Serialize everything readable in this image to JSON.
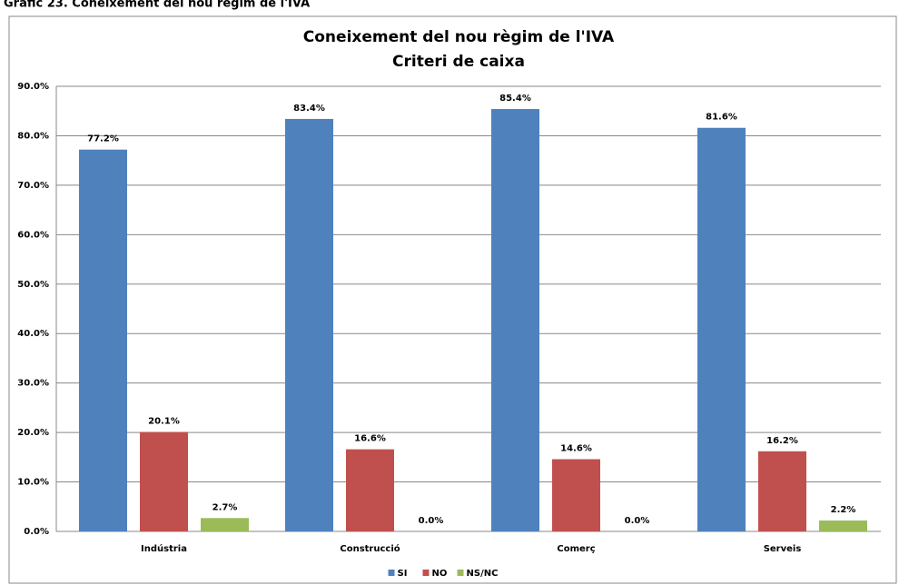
{
  "header": "Gràfic 23. Coneixement del nou règim de l'IVA",
  "chart_data": {
    "type": "bar",
    "title": "Coneixement del nou règim de l'IVA",
    "subtitle": "Criteri de caixa",
    "categories": [
      "Indústria",
      "Construcció",
      "Comerç",
      "Serveis"
    ],
    "series": [
      {
        "name": "SI",
        "color": "#4f81bd",
        "values": [
          77.2,
          83.4,
          85.4,
          81.6
        ],
        "value_labels": [
          "77.2%",
          "83.4%",
          "85.4%",
          "81.6%"
        ]
      },
      {
        "name": "NO",
        "color": "#c0504d",
        "values": [
          20.1,
          16.6,
          14.6,
          16.2
        ],
        "value_labels": [
          "20.1%",
          "16.6%",
          "14.6%",
          "16.2%"
        ]
      },
      {
        "name": "NS/NC",
        "color": "#9bbb59",
        "values": [
          2.7,
          0,
          0,
          2.2
        ],
        "value_labels": [
          "2.7%",
          "0.0%",
          "0.0%",
          "2.2%"
        ]
      }
    ],
    "ylim": [
      0,
      90
    ],
    "yticks": [
      {
        "value": 0,
        "label": "0.0%"
      },
      {
        "value": 10,
        "label": "10.0%"
      },
      {
        "value": 20,
        "label": "20.0%"
      },
      {
        "value": 30,
        "label": "30.0%"
      },
      {
        "value": 40,
        "label": "40.0%"
      },
      {
        "value": 50,
        "label": "50.0%"
      },
      {
        "value": 60,
        "label": "60.0%"
      },
      {
        "value": 70,
        "label": "70.0%"
      },
      {
        "value": 80,
        "label": "80.0%"
      },
      {
        "value": 90,
        "label": "90.0%"
      }
    ],
    "grid": true,
    "legend": "bottom"
  }
}
